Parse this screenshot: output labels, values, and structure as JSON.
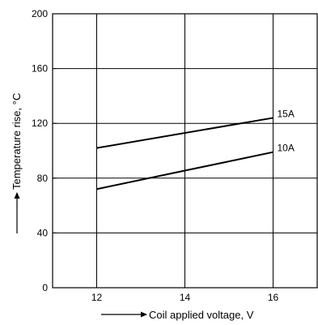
{
  "chart_data": {
    "type": "line",
    "xlabel": "Coil applied voltage, V",
    "ylabel": "Temperature rise, °C",
    "xlim": [
      11,
      17
    ],
    "ylim": [
      0,
      200
    ],
    "x_ticks": [
      12,
      14,
      16
    ],
    "y_ticks": [
      0,
      40,
      80,
      120,
      160,
      200
    ],
    "grid": true,
    "legend": "inline labels at line ends",
    "series": [
      {
        "name": "15A",
        "x": [
          12,
          16
        ],
        "values": [
          102,
          124
        ]
      },
      {
        "name": "10A",
        "x": [
          12,
          16
        ],
        "values": [
          72,
          99
        ]
      }
    ]
  }
}
